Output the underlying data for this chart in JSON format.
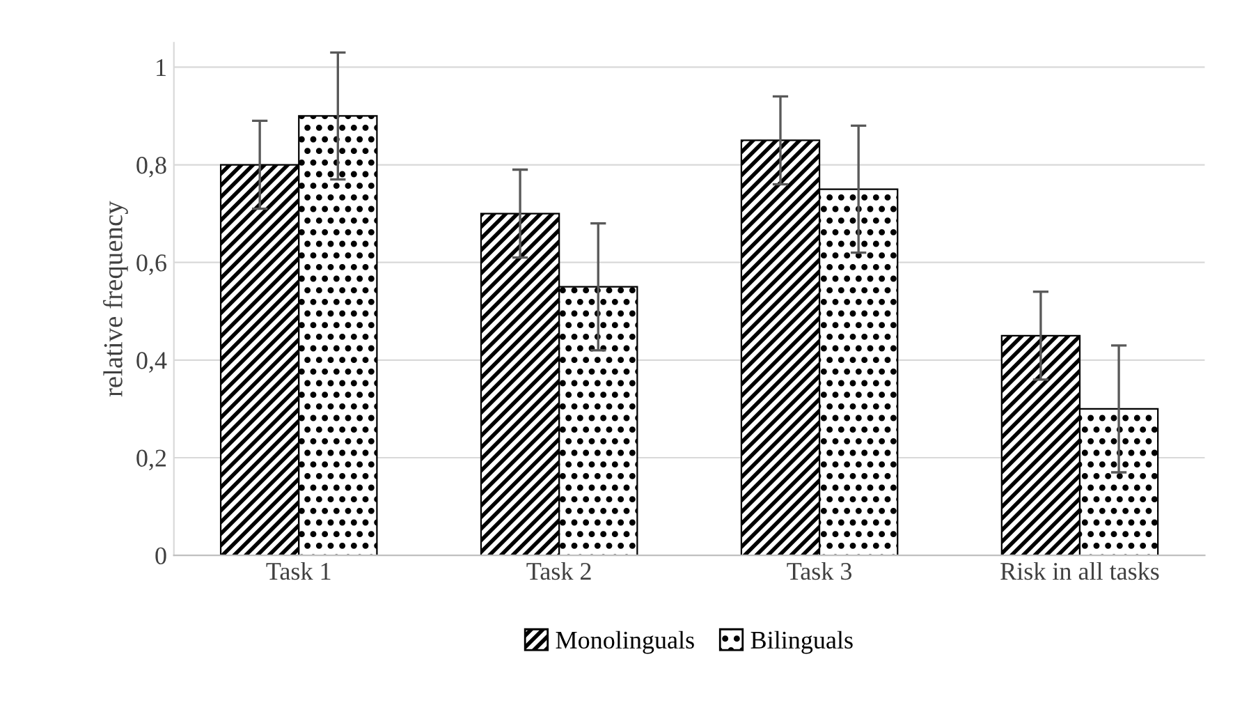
{
  "chart_data": {
    "type": "bar",
    "ylabel": "relative frequency",
    "categories": [
      "Task 1",
      "Task 2",
      "Task 3",
      "Risk in all tasks"
    ],
    "series": [
      {
        "name": "Monolinguals",
        "color": "#000000",
        "values": [
          0.8,
          0.7,
          0.85,
          0.45
        ],
        "errors": [
          0.09,
          0.09,
          0.09,
          0.09
        ]
      },
      {
        "name": "Bilinguals",
        "color": "#000000",
        "values": [
          0.9,
          0.55,
          0.75,
          0.3
        ],
        "errors": [
          0.13,
          0.13,
          0.13,
          0.13
        ]
      }
    ],
    "ylim": [
      0,
      1.05
    ],
    "yticks": [
      0,
      {
        "value": 0.2,
        "label": "0,2"
      },
      {
        "value": 0.4,
        "label": "0,4"
      },
      {
        "value": 0.6,
        "label": "0,6"
      },
      {
        "value": 0.8,
        "label": "0,8"
      },
      1
    ],
    "grid": "y",
    "legend": "bottom"
  }
}
